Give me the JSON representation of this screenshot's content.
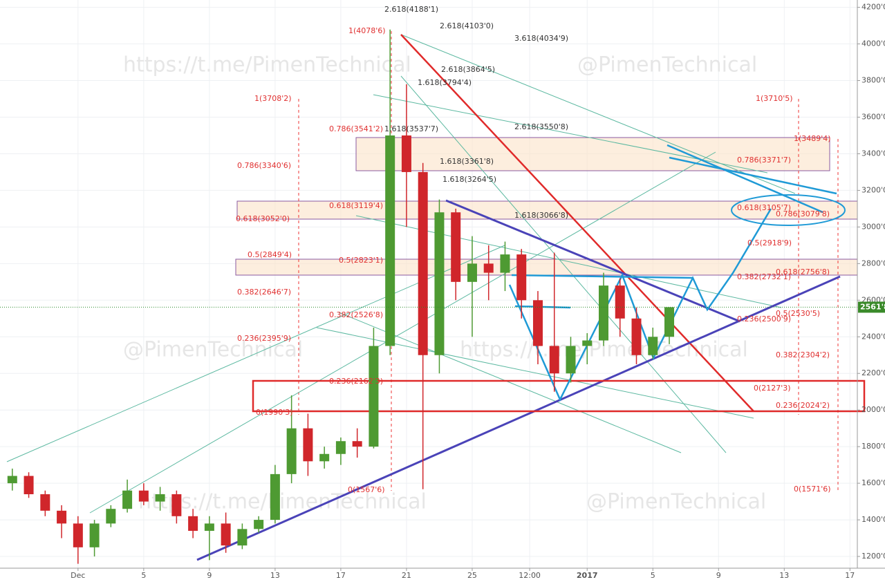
{
  "chart_data": {
    "type": "candlestick",
    "ylim": [
      1136,
      4240
    ],
    "yticks": [
      {
        "value": 1200,
        "label": "1200'0"
      },
      {
        "value": 1400,
        "label": "1400'0"
      },
      {
        "value": 1600,
        "label": "1600'0"
      },
      {
        "value": 1800,
        "label": "1800'0"
      },
      {
        "value": 2000,
        "label": "2000'0"
      },
      {
        "value": 2200,
        "label": "2200'0"
      },
      {
        "value": 2400,
        "label": "2400'0"
      },
      {
        "value": 2600,
        "label": "2600'0"
      },
      {
        "value": 2800,
        "label": "2800'0"
      },
      {
        "value": 3000,
        "label": "3000'0"
      },
      {
        "value": 3200,
        "label": "3200'0"
      },
      {
        "value": 3400,
        "label": "3400'0"
      },
      {
        "value": 3600,
        "label": "3600'0"
      },
      {
        "value": 3800,
        "label": "3800'0"
      },
      {
        "value": 4000,
        "label": "4000'0"
      },
      {
        "value": 4200,
        "label": "4200'0"
      }
    ],
    "xlim": [
      -4.75,
      47.45
    ],
    "xticks": [
      {
        "value": 0,
        "label": "Dec"
      },
      {
        "value": 4,
        "label": "5"
      },
      {
        "value": 8,
        "label": "9"
      },
      {
        "value": 12,
        "label": "13"
      },
      {
        "value": 16,
        "label": "17"
      },
      {
        "value": 20,
        "label": "21"
      },
      {
        "value": 24,
        "label": "25"
      },
      {
        "value": 27.5,
        "label": "12:00"
      },
      {
        "value": 31,
        "label": "2017"
      },
      {
        "value": 35,
        "label": "5"
      },
      {
        "value": 39,
        "label": "9"
      },
      {
        "value": 43,
        "label": "13"
      },
      {
        "value": 47,
        "label": "17"
      }
    ],
    "grid": true,
    "up_color": "#4e9a32",
    "down_color": "#d0262b",
    "x": [
      -4,
      -3,
      -2,
      -1,
      0,
      1,
      2,
      3,
      4,
      5,
      6,
      7,
      8,
      9,
      10,
      11,
      12,
      13,
      14,
      15,
      16,
      17,
      18,
      19,
      20,
      21,
      22,
      23,
      24,
      25,
      26,
      27,
      28,
      29,
      30,
      31,
      32,
      33,
      34,
      35,
      36
    ],
    "open": [
      1600,
      1640,
      1540,
      1450,
      1380,
      1250,
      1380,
      1460,
      1560,
      1500,
      1540,
      1420,
      1340,
      1380,
      1260,
      1350,
      1400,
      1650,
      1900,
      1720,
      1760,
      1830,
      1800,
      2350,
      3500,
      3300,
      2300,
      3080,
      2700,
      2800,
      2750,
      2850,
      2600,
      2350,
      2200,
      2350,
      2380,
      2680,
      2500,
      2300,
      2400
    ],
    "high": [
      1680,
      1660,
      1560,
      1480,
      1420,
      1400,
      1480,
      1620,
      1600,
      1580,
      1560,
      1460,
      1420,
      1440,
      1380,
      1420,
      1700,
      2080,
      1980,
      1800,
      1850,
      1900,
      2450,
      4078.6,
      3780,
      3350,
      3150,
      3100,
      2950,
      2900,
      2920,
      2880,
      2650,
      2860,
      2400,
      2420,
      2750,
      2720,
      2560,
      2450,
      2561.8
    ],
    "low": [
      1560,
      1520,
      1420,
      1300,
      1160,
      1200,
      1360,
      1440,
      1480,
      1450,
      1380,
      1300,
      1180,
      1220,
      1240,
      1330,
      1380,
      1600,
      1640,
      1680,
      1700,
      1740,
      1790,
      2300,
      3000,
      1567.6,
      2200,
      2600,
      2400,
      2600,
      2650,
      2500,
      2250,
      2100,
      2150,
      2250,
      2350,
      2400,
      2250,
      2280,
      2360
    ],
    "close": [
      1640,
      1540,
      1450,
      1380,
      1250,
      1380,
      1460,
      1560,
      1500,
      1540,
      1420,
      1340,
      1380,
      1260,
      1350,
      1400,
      1650,
      1900,
      1720,
      1760,
      1830,
      1800,
      2350,
      3500,
      3300,
      2300,
      3080,
      2700,
      2800,
      2750,
      2850,
      2600,
      2350,
      2200,
      2350,
      2380,
      2680,
      2500,
      2300,
      2400,
      2561.8
    ],
    "last_price": {
      "value": 2561.8,
      "label": "2561'8"
    },
    "annotations": [
      "2.618(4188'1)",
      "2.618(4103'0)",
      "3.618(4034'9)",
      "2.618(3864'5)",
      "1.618(3794'4)",
      "1.618(3537'7)",
      "2.618(3550'8)",
      "1.618(3361'8)",
      "1.618(3264'5)",
      "1.618(3066'8)",
      "1(4078'6)",
      "1(3708'2)",
      "0.786(3541'2)",
      "0.786(3340'6)",
      "0.618(3119'4)",
      "0.618(3052'0)",
      "0.5(2849'4)",
      "0.5(2823'1)",
      "0.382(2646'7)",
      "0.382(2526'8)",
      "0.236(2395'9)",
      "0.236(2162'3)",
      "0(1990'3)",
      "0(1567'6)",
      "1(3710'5)",
      "1(3489'4)",
      "0.786(3371'7)",
      "0.618(3105'7)",
      "0.786(3079'8)",
      "0.5(2918'9)",
      "0.618(2756'8)",
      "0.382(2732'1)",
      "0.5(2530'5)",
      "0.236(2500'9)",
      "0.382(2304'2)",
      "0(2127'3)",
      "0.236(2024'2)",
      "0(1571'6)"
    ],
    "watermarks": [
      "https://t.me/PimenTechnical",
      "@PimenTechnical",
      "@PimenTechnical",
      "https://t.me/PimenTechnical",
      "https://t.me/PimenTechnical",
      "@PimenTechnical"
    ]
  }
}
